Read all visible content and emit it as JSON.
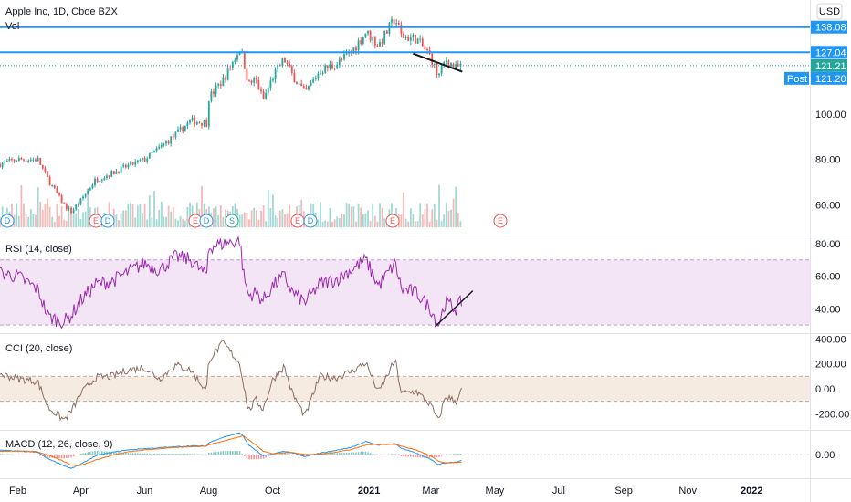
{
  "header": {
    "title": "Apple Inc, 1D, Cboe BZX",
    "volume_label": "Vol",
    "currency": "USD"
  },
  "colors": {
    "up": "#26a69a",
    "down": "#ef5350",
    "level_line": "#2196f3",
    "rsi_line": "#9c27b0",
    "rsi_band": "#f3e5f5",
    "cci_line": "#8d6e63",
    "cci_band": "#f5ebe0",
    "macd_line": "#2196f3",
    "signal_line": "#ff6d00",
    "trend_line": "#131722"
  },
  "chart_data": [
    {
      "type": "candlestick",
      "name": "price",
      "x_tick_labels": [
        "Feb",
        "Apr",
        "Jun",
        "Aug",
        "Oct",
        "2021",
        "Mar",
        "May",
        "Jul",
        "Sep",
        "Nov",
        "2022"
      ],
      "y_ticks": [
        60.0,
        80.0,
        100.0
      ],
      "ylim": [
        47,
        150
      ],
      "levels": [
        138.08,
        127.04
      ],
      "price_tags": [
        {
          "text": "138.08",
          "kind": "level"
        },
        {
          "text": "127.04",
          "kind": "level"
        },
        {
          "text": "121.21",
          "kind": "last"
        },
        {
          "text": "121.20",
          "kind": "post",
          "label": "Post"
        }
      ],
      "last_price": 121.21,
      "post_price": 121.2,
      "earnings_markers": [
        "D",
        "E",
        "D",
        "E",
        "D",
        "S",
        "E",
        "D",
        "E",
        "E"
      ],
      "trend_line": {
        "from": [
          "2021-02-12",
          126.5
        ],
        "to": [
          "2021-03-31",
          118.5
        ]
      },
      "series_close": [
        [
          "2020-01-15",
          78
        ],
        [
          "2020-02-01",
          80
        ],
        [
          "2020-02-20",
          80
        ],
        [
          "2020-03-01",
          71
        ],
        [
          "2020-03-16",
          60
        ],
        [
          "2020-03-23",
          57
        ],
        [
          "2020-04-01",
          62
        ],
        [
          "2020-04-15",
          71
        ],
        [
          "2020-05-01",
          74
        ],
        [
          "2020-05-15",
          77
        ],
        [
          "2020-06-01",
          80
        ],
        [
          "2020-06-15",
          85
        ],
        [
          "2020-07-01",
          91
        ],
        [
          "2020-07-15",
          97
        ],
        [
          "2020-07-30",
          96
        ],
        [
          "2020-08-01",
          107
        ],
        [
          "2020-08-15",
          115
        ],
        [
          "2020-08-31",
          129
        ],
        [
          "2020-09-03",
          124
        ],
        [
          "2020-09-08",
          113
        ],
        [
          "2020-09-15",
          115
        ],
        [
          "2020-09-22",
          106
        ],
        [
          "2020-10-01",
          116
        ],
        [
          "2020-10-12",
          124
        ],
        [
          "2020-10-20",
          117
        ],
        [
          "2020-11-01",
          109
        ],
        [
          "2020-11-15",
          119
        ],
        [
          "2020-12-01",
          122
        ],
        [
          "2020-12-15",
          127
        ],
        [
          "2020-12-29",
          136
        ],
        [
          "2021-01-10",
          130
        ],
        [
          "2021-01-26",
          142
        ],
        [
          "2021-02-01",
          134
        ],
        [
          "2021-02-15",
          133
        ],
        [
          "2021-03-01",
          125
        ],
        [
          "2021-03-08",
          116
        ],
        [
          "2021-03-15",
          124
        ],
        [
          "2021-03-25",
          120
        ],
        [
          "2021-03-31",
          121.21
        ]
      ]
    },
    {
      "type": "line",
      "name": "RSI",
      "title": "RSI (14, close)",
      "y_ticks": [
        80.0,
        60.0,
        40.0
      ],
      "ylim": [
        25,
        85
      ],
      "band": [
        30,
        70
      ],
      "trend_line": {
        "from": [
          "2021-03-05",
          29
        ],
        "to": [
          "2021-04-10",
          51
        ]
      },
      "values": [
        [
          "2020-01-15",
          62
        ],
        [
          "2020-02-01",
          60
        ],
        [
          "2020-02-20",
          52
        ],
        [
          "2020-03-01",
          35
        ],
        [
          "2020-03-16",
          32
        ],
        [
          "2020-03-23",
          36
        ],
        [
          "2020-04-01",
          45
        ],
        [
          "2020-04-15",
          55
        ],
        [
          "2020-05-01",
          57
        ],
        [
          "2020-05-15",
          62
        ],
        [
          "2020-06-01",
          68
        ],
        [
          "2020-06-15",
          64
        ],
        [
          "2020-07-01",
          72
        ],
        [
          "2020-07-15",
          70
        ],
        [
          "2020-07-30",
          60
        ],
        [
          "2020-08-01",
          78
        ],
        [
          "2020-08-15",
          80
        ],
        [
          "2020-08-31",
          82
        ],
        [
          "2020-09-03",
          62
        ],
        [
          "2020-09-08",
          48
        ],
        [
          "2020-09-15",
          50
        ],
        [
          "2020-09-22",
          45
        ],
        [
          "2020-10-01",
          54
        ],
        [
          "2020-10-12",
          60
        ],
        [
          "2020-10-20",
          50
        ],
        [
          "2020-11-01",
          44
        ],
        [
          "2020-11-15",
          55
        ],
        [
          "2020-12-01",
          58
        ],
        [
          "2020-12-15",
          64
        ],
        [
          "2020-12-29",
          70
        ],
        [
          "2021-01-10",
          54
        ],
        [
          "2021-01-26",
          68
        ],
        [
          "2021-02-01",
          52
        ],
        [
          "2021-02-15",
          50
        ],
        [
          "2021-03-01",
          40
        ],
        [
          "2021-03-08",
          30
        ],
        [
          "2021-03-15",
          44
        ],
        [
          "2021-03-25",
          40
        ],
        [
          "2021-03-31",
          45
        ]
      ]
    },
    {
      "type": "line",
      "name": "CCI",
      "title": "CCI (20, close)",
      "y_ticks": [
        400.0,
        200.0,
        0.0,
        -200.0
      ],
      "ylim": [
        -330,
        440
      ],
      "band": [
        -100,
        100
      ],
      "values": [
        [
          "2020-01-15",
          120
        ],
        [
          "2020-02-01",
          80
        ],
        [
          "2020-02-20",
          60
        ],
        [
          "2020-03-01",
          -150
        ],
        [
          "2020-03-16",
          -250
        ],
        [
          "2020-03-23",
          -180
        ],
        [
          "2020-04-01",
          -40
        ],
        [
          "2020-04-15",
          90
        ],
        [
          "2020-05-01",
          100
        ],
        [
          "2020-05-15",
          150
        ],
        [
          "2020-06-01",
          170
        ],
        [
          "2020-06-15",
          80
        ],
        [
          "2020-07-01",
          190
        ],
        [
          "2020-07-15",
          150
        ],
        [
          "2020-07-30",
          -20
        ],
        [
          "2020-08-01",
          230
        ],
        [
          "2020-08-15",
          370
        ],
        [
          "2020-08-31",
          200
        ],
        [
          "2020-09-03",
          50
        ],
        [
          "2020-09-08",
          -180
        ],
        [
          "2020-09-15",
          -90
        ],
        [
          "2020-09-22",
          -160
        ],
        [
          "2020-10-01",
          70
        ],
        [
          "2020-10-12",
          180
        ],
        [
          "2020-10-20",
          -40
        ],
        [
          "2020-11-01",
          -220
        ],
        [
          "2020-11-15",
          100
        ],
        [
          "2020-12-01",
          90
        ],
        [
          "2020-12-15",
          140
        ],
        [
          "2020-12-29",
          210
        ],
        [
          "2021-01-10",
          -30
        ],
        [
          "2021-01-26",
          230
        ],
        [
          "2021-02-01",
          -40
        ],
        [
          "2021-02-15",
          -20
        ],
        [
          "2021-03-01",
          -130
        ],
        [
          "2021-03-08",
          -260
        ],
        [
          "2021-03-15",
          -60
        ],
        [
          "2021-03-25",
          -100
        ],
        [
          "2021-03-31",
          0
        ]
      ]
    },
    {
      "type": "line",
      "name": "MACD",
      "title": "MACD (12, 26, close, 9)",
      "y_ticks": [
        0.0
      ],
      "ylim": [
        -8.5,
        8.5
      ],
      "macd": [
        [
          "2020-01-15",
          1.5
        ],
        [
          "2020-02-01",
          1.2
        ],
        [
          "2020-02-20",
          0.8
        ],
        [
          "2020-03-01",
          -1.5
        ],
        [
          "2020-03-16",
          -4
        ],
        [
          "2020-03-23",
          -5
        ],
        [
          "2020-04-01",
          -3.5
        ],
        [
          "2020-04-15",
          -0.5
        ],
        [
          "2020-05-01",
          0.8
        ],
        [
          "2020-05-15",
          1.6
        ],
        [
          "2020-06-01",
          2.1
        ],
        [
          "2020-06-15",
          2.4
        ],
        [
          "2020-07-01",
          2.8
        ],
        [
          "2020-07-15",
          3.1
        ],
        [
          "2020-07-30",
          3.0
        ],
        [
          "2020-08-01",
          4.2
        ],
        [
          "2020-08-15",
          6.2
        ],
        [
          "2020-08-31",
          7.8
        ],
        [
          "2020-09-03",
          6.5
        ],
        [
          "2020-09-08",
          3.5
        ],
        [
          "2020-09-15",
          1.5
        ],
        [
          "2020-09-22",
          -0.5
        ],
        [
          "2020-10-01",
          0.2
        ],
        [
          "2020-10-12",
          1.2
        ],
        [
          "2020-10-20",
          0.6
        ],
        [
          "2020-11-01",
          -0.8
        ],
        [
          "2020-11-15",
          0.5
        ],
        [
          "2020-12-01",
          1.5
        ],
        [
          "2020-12-15",
          2.6
        ],
        [
          "2020-12-29",
          4.6
        ],
        [
          "2021-01-10",
          3.4
        ],
        [
          "2021-01-26",
          3.9
        ],
        [
          "2021-02-01",
          2.2
        ],
        [
          "2021-02-15",
          0.5
        ],
        [
          "2021-03-01",
          -1.8
        ],
        [
          "2021-03-08",
          -3.5
        ],
        [
          "2021-03-15",
          -3.0
        ],
        [
          "2021-03-25",
          -2.6
        ],
        [
          "2021-03-31",
          -2.2
        ]
      ],
      "signal": [
        [
          "2020-01-15",
          1.2
        ],
        [
          "2020-02-01",
          1.3
        ],
        [
          "2020-02-20",
          1.0
        ],
        [
          "2020-03-01",
          -0.2
        ],
        [
          "2020-03-16",
          -2.4
        ],
        [
          "2020-03-23",
          -3.8
        ],
        [
          "2020-04-01",
          -3.9
        ],
        [
          "2020-04-15",
          -2.0
        ],
        [
          "2020-05-01",
          -0.3
        ],
        [
          "2020-05-15",
          0.9
        ],
        [
          "2020-06-01",
          1.6
        ],
        [
          "2020-06-15",
          2.1
        ],
        [
          "2020-07-01",
          2.5
        ],
        [
          "2020-07-15",
          2.8
        ],
        [
          "2020-07-30",
          3.0
        ],
        [
          "2020-08-01",
          3.5
        ],
        [
          "2020-08-15",
          4.8
        ],
        [
          "2020-08-31",
          6.4
        ],
        [
          "2020-09-03",
          6.8
        ],
        [
          "2020-09-08",
          5.4
        ],
        [
          "2020-09-15",
          3.4
        ],
        [
          "2020-09-22",
          1.2
        ],
        [
          "2020-10-01",
          0.3
        ],
        [
          "2020-10-12",
          0.6
        ],
        [
          "2020-10-20",
          0.8
        ],
        [
          "2020-11-01",
          0.0
        ],
        [
          "2020-11-15",
          0.1
        ],
        [
          "2020-12-01",
          0.9
        ],
        [
          "2020-12-15",
          1.8
        ],
        [
          "2020-12-29",
          3.4
        ],
        [
          "2021-01-10",
          3.7
        ],
        [
          "2021-01-26",
          3.6
        ],
        [
          "2021-02-01",
          3.0
        ],
        [
          "2021-02-15",
          1.6
        ],
        [
          "2021-03-01",
          -0.5
        ],
        [
          "2021-03-08",
          -2.4
        ],
        [
          "2021-03-15",
          -3.0
        ],
        [
          "2021-03-25",
          -2.9
        ],
        [
          "2021-03-31",
          -2.6
        ]
      ]
    }
  ]
}
